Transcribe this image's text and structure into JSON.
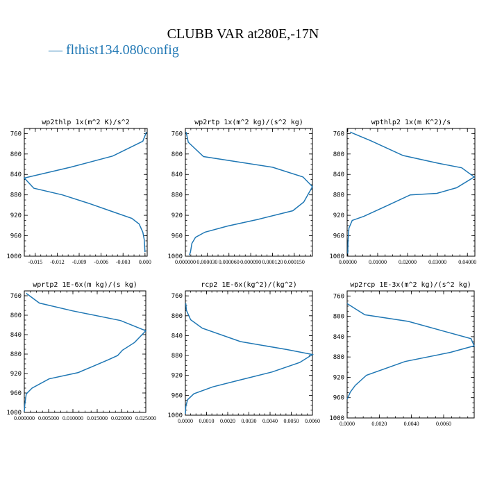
{
  "title": "CLUBB VAR at280E,-17N",
  "legend": [
    {
      "label": "— flthist134.080config",
      "color": "#1f77b4"
    }
  ],
  "chart_data": [
    {
      "type": "line",
      "title": "wp2thlp  1x(m^2 K)/s^2",
      "series_name": "flthist134.080config",
      "color": "#1f77b4",
      "xlim": [
        -0.0165,
        0.0003
      ],
      "ylim": [
        1000,
        750
      ],
      "xticks": [
        -0.015,
        -0.012,
        -0.009,
        -0.006,
        -0.003,
        0.0
      ],
      "xtick_labels": [
        "-0.015",
        "-0.012",
        "-0.009",
        "-0.006",
        "-0.003",
        "0.000"
      ],
      "yticks": [
        760,
        800,
        840,
        880,
        920,
        960,
        1000
      ],
      "ytick_labels": [
        "760",
        "800",
        "840",
        "880",
        "920",
        "960",
        "1000"
      ],
      "x": [
        0.0002,
        -0.0003,
        -0.0044,
        -0.0102,
        -0.0165,
        -0.0152,
        -0.0113,
        -0.0076,
        -0.0044,
        -0.0018,
        -0.0008,
        -0.0003,
        -0.0001,
        0.0
      ],
      "y": [
        757,
        775,
        804,
        826,
        847,
        867,
        880,
        897,
        913,
        926,
        937,
        953,
        968,
        992
      ]
    },
    {
      "type": "line",
      "title": "wp2rtp  1x(m^2 kg)/(s^2 kg)",
      "series_name": "flthist134.080config",
      "color": "#1f77b4",
      "xlim": [
        0.0,
        0.000175
      ],
      "ylim": [
        1000,
        750
      ],
      "xticks": [
        0.0,
        3e-05,
        6e-05,
        9e-05,
        0.00012,
        0.00015
      ],
      "xtick_labels": [
        "0.000000",
        "0.000030",
        "0.000060",
        "0.000090",
        "0.000120",
        "0.000150"
      ],
      "yticks": [
        760,
        800,
        840,
        880,
        920,
        960,
        1000
      ],
      "ytick_labels": [
        "760",
        "800",
        "840",
        "880",
        "920",
        "960",
        "1000"
      ],
      "x": [
        1e-06,
        4e-06,
        2.5e-05,
        0.00012,
        0.000162,
        0.000175,
        0.000163,
        0.000148,
        0.0001,
        5.8e-05,
        2.7e-05,
        1.4e-05,
        9e-06,
        7e-06,
        5.5e-06
      ],
      "y": [
        757,
        777,
        805,
        826,
        845,
        864,
        894,
        911,
        928,
        941,
        953,
        963,
        975,
        992,
        998
      ]
    },
    {
      "type": "line",
      "title": "wpthlp2  1x(m K^2)/s",
      "series_name": "flthist134.080config",
      "color": "#1f77b4",
      "xlim": [
        -0.0002,
        0.0425
      ],
      "ylim": [
        1000,
        750
      ],
      "xticks": [
        0.0,
        0.01,
        0.02,
        0.03,
        0.04
      ],
      "xtick_labels": [
        "0.00000",
        "0.01000",
        "0.02000",
        "0.03000",
        "0.04000"
      ],
      "yticks": [
        760,
        800,
        840,
        880,
        920,
        960,
        1000
      ],
      "ytick_labels": [
        "760",
        "800",
        "840",
        "880",
        "920",
        "960",
        "1000"
      ],
      "x": [
        0.0008,
        0.0077,
        0.0185,
        0.0301,
        0.0381,
        0.0423,
        0.0364,
        0.0298,
        0.0209,
        0.0128,
        0.0054,
        0.0015,
        0.0004,
        0.0001,
        0.0
      ],
      "y": [
        757,
        774,
        803,
        818,
        827,
        845,
        866,
        877,
        880,
        902,
        922,
        930,
        945,
        970,
        995
      ]
    },
    {
      "type": "line",
      "title": "wprtp2  1E-6x(m kg)/(s kg)",
      "series_name": "flthist134.080config",
      "color": "#1f77b4",
      "xlim": [
        0.0,
        0.025
      ],
      "ylim": [
        1000,
        750
      ],
      "xticks": [
        0.0,
        0.005,
        0.01,
        0.015,
        0.02,
        0.025
      ],
      "xtick_labels": [
        "0.000000",
        "0.005000",
        "0.010000",
        "0.015000",
        "0.020000",
        "0.025000"
      ],
      "yticks": [
        760,
        800,
        840,
        880,
        920,
        960,
        1000
      ],
      "ytick_labels": [
        "760",
        "800",
        "840",
        "880",
        "920",
        "960",
        "1000"
      ],
      "x": [
        0.0004,
        0.0031,
        0.0099,
        0.0198,
        0.025,
        0.0227,
        0.0202,
        0.0192,
        0.0172,
        0.0111,
        0.0051,
        0.0016,
        0.0004,
        0.0001,
        0.0
      ],
      "y": [
        755,
        775,
        791,
        811,
        832,
        856,
        872,
        883,
        892,
        918,
        931,
        950,
        962,
        984,
        998
      ]
    },
    {
      "type": "line",
      "title": "rcp2  1E-6x(kg^2)/(kg^2)",
      "series_name": "flthist134.080config",
      "color": "#1f77b4",
      "xlim": [
        0.0,
        0.006
      ],
      "ylim": [
        1000,
        750
      ],
      "xticks": [
        0.0,
        0.001,
        0.002,
        0.003,
        0.004,
        0.005,
        0.006
      ],
      "xtick_labels": [
        "0.0000",
        "0.0010",
        "0.0020",
        "0.0030",
        "0.0040",
        "0.0050",
        "0.0060"
      ],
      "yticks": [
        760,
        800,
        840,
        880,
        920,
        960,
        1000
      ],
      "ytick_labels": [
        "760",
        "800",
        "840",
        "880",
        "920",
        "960",
        "1000"
      ],
      "x": [
        2e-05,
        5e-05,
        0.00025,
        0.0008,
        0.0026,
        0.0048,
        0.006,
        0.0054,
        0.0041,
        0.0025,
        0.0013,
        0.0004,
        0.0001,
        2e-05,
        0.0
      ],
      "y": [
        775,
        789,
        808,
        825,
        852,
        868,
        878,
        894,
        913,
        930,
        943,
        957,
        969,
        983,
        997
      ]
    },
    {
      "type": "line",
      "title": "wp2rcp  1E-3x(m^2 kg)/(s^2 kg)",
      "series_name": "flthist134.080config",
      "color": "#1f77b4",
      "xlim": [
        0.0,
        0.0079
      ],
      "ylim": [
        1000,
        750
      ],
      "xticks": [
        0.0,
        0.002,
        0.004,
        0.006
      ],
      "xtick_labels": [
        "0.0000",
        "0.0020",
        "0.0040",
        "0.0060"
      ],
      "yticks": [
        760,
        800,
        840,
        880,
        920,
        960,
        1000
      ],
      "ytick_labels": [
        "760",
        "800",
        "840",
        "880",
        "920",
        "960",
        "1000"
      ],
      "x": [
        0.0,
        0.0011,
        0.0038,
        0.0077,
        0.0079,
        0.0064,
        0.0036,
        0.0012,
        0.0005,
        0.0002,
        0.0
      ],
      "y": [
        775,
        797,
        810,
        844,
        858,
        871,
        889,
        916,
        936,
        949,
        963
      ]
    }
  ]
}
